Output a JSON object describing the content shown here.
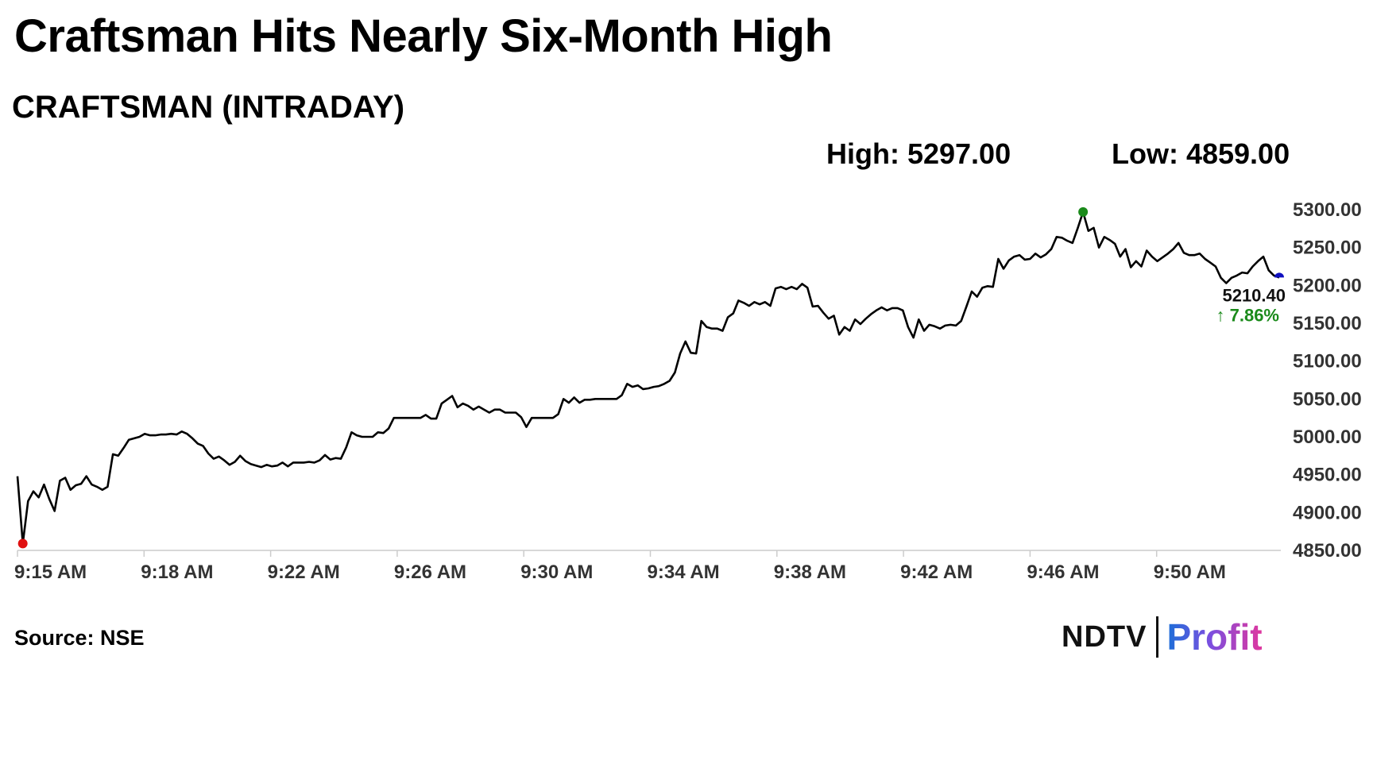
{
  "headline": "Craftsman Hits Nearly Six-Month High",
  "source": "Source: NSE",
  "logo": {
    "ndtv": "NDTV",
    "profit": "Profit"
  },
  "colors": {
    "line": "#000000",
    "high_marker": "#1a8a1a",
    "low_marker": "#e01010",
    "last_marker": "#1010c0",
    "change_text": "#1a8a1a"
  },
  "chart_data": {
    "type": "line",
    "title": "CRAFTSMAN (INTRADAY)",
    "high_label": "High: 5297.00",
    "low_label": "Low: 4859.00",
    "high": 5297.0,
    "low": 4859.0,
    "last_value_label": "5210.40",
    "change_label": "↑ 7.86%",
    "ylim": [
      4850,
      5300
    ],
    "y_ticks": [
      "5300.00",
      "5250.00",
      "5200.00",
      "5150.00",
      "5100.00",
      "5050.00",
      "5000.00",
      "4950.00",
      "4900.00",
      "4850.00"
    ],
    "x_ticks": [
      "9:15 AM",
      "9:18 AM",
      "9:22 AM",
      "9:26 AM",
      "9:30 AM",
      "9:34 AM",
      "9:38 AM",
      "9:42 AM",
      "9:46 AM",
      "9:50 AM"
    ],
    "grid": false,
    "series": [
      {
        "values": [
          4948,
          4859,
          4915,
          4928,
          4920,
          4937,
          4918,
          4902,
          4942,
          4946,
          4930,
          4936,
          4938,
          4948,
          4937,
          4934,
          4930,
          4934,
          4977,
          4975,
          4985,
          4996,
          4998,
          5000,
          5004,
          5002,
          5002,
          5003,
          5003,
          5004,
          5003,
          5007,
          5004,
          4998,
          4991,
          4988,
          4978,
          4971,
          4974,
          4969,
          4963,
          4967,
          4975,
          4968,
          4964,
          4962,
          4960,
          4963,
          4961,
          4962,
          4966,
          4961,
          4966,
          4966,
          4966,
          4967,
          4966,
          4969,
          4976,
          4970,
          4972,
          4971,
          4986,
          5006,
          5002,
          5000,
          5000,
          5000,
          5006,
          5005,
          5011,
          5025,
          5025,
          5025,
          5025,
          5025,
          5025,
          5029,
          5024,
          5024,
          5044,
          5049,
          5054,
          5039,
          5044,
          5041,
          5036,
          5040,
          5036,
          5032,
          5036,
          5036,
          5032,
          5032,
          5032,
          5026,
          5013,
          5025,
          5025,
          5025,
          5025,
          5025,
          5030,
          5050,
          5045,
          5052,
          5045,
          5049,
          5049,
          5050,
          5050,
          5050,
          5050,
          5050,
          5055,
          5070,
          5066,
          5068,
          5063,
          5064,
          5066,
          5067,
          5070,
          5074,
          5085,
          5110,
          5126,
          5111,
          5110,
          5153,
          5145,
          5143,
          5143,
          5140,
          5158,
          5163,
          5180,
          5177,
          5173,
          5178,
          5175,
          5178,
          5173,
          5196,
          5198,
          5195,
          5198,
          5195,
          5202,
          5197,
          5172,
          5173,
          5164,
          5156,
          5160,
          5135,
          5145,
          5140,
          5155,
          5149,
          5156,
          5162,
          5167,
          5171,
          5167,
          5170,
          5170,
          5167,
          5145,
          5131,
          5155,
          5140,
          5148,
          5146,
          5143,
          5147,
          5148,
          5147,
          5153,
          5172,
          5192,
          5185,
          5197,
          5199,
          5198,
          5235,
          5222,
          5233,
          5238,
          5240,
          5234,
          5235,
          5242,
          5237,
          5241,
          5248,
          5264,
          5263,
          5259,
          5256,
          5276,
          5297,
          5272,
          5276,
          5250,
          5264,
          5260,
          5255,
          5238,
          5248,
          5224,
          5232,
          5225,
          5246,
          5238,
          5232,
          5237,
          5242,
          5248,
          5256,
          5243,
          5240,
          5240,
          5242,
          5235,
          5230,
          5225,
          5210,
          5203,
          5210,
          5213,
          5217,
          5216,
          5225,
          5232,
          5238,
          5220,
          5213,
          5210.4
        ]
      }
    ]
  }
}
